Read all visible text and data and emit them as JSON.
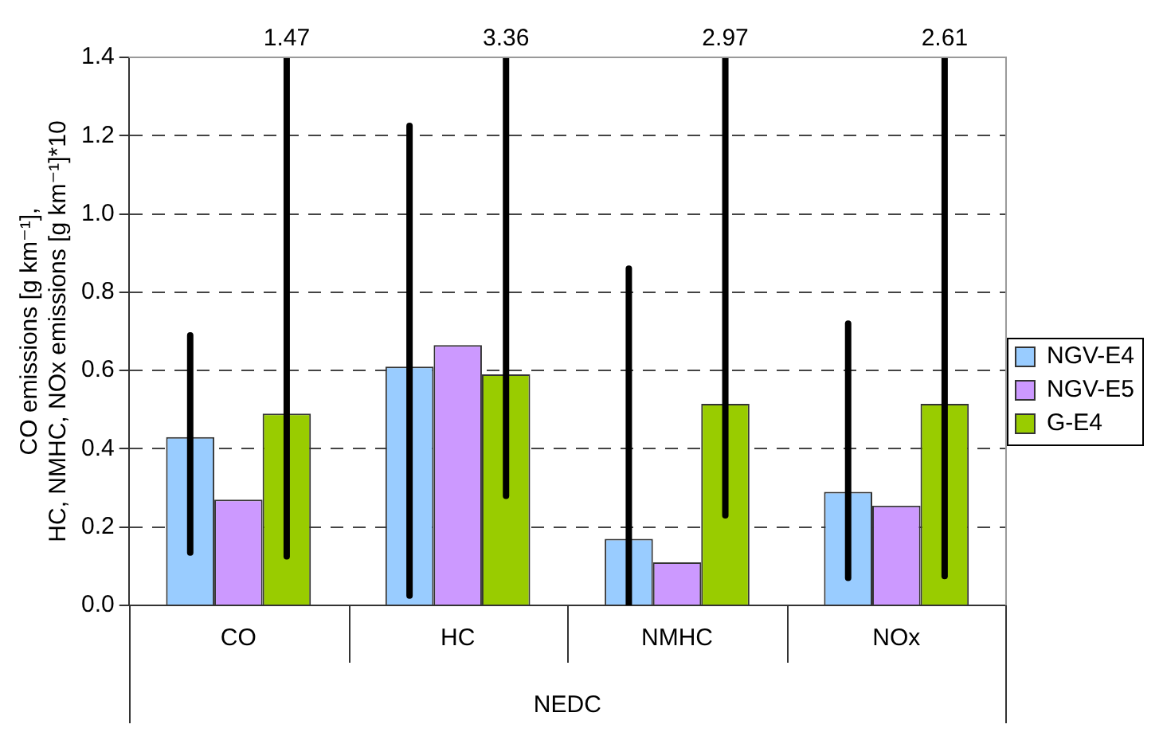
{
  "chart_data": {
    "type": "bar",
    "xlabel": "NEDC",
    "ylabel": "CO emissions [g km⁻¹],\nHC, NMHC, NOx emissions [g km⁻¹]*10",
    "categories": [
      "CO",
      "HC",
      "NMHC",
      "NOx"
    ],
    "series": [
      {
        "name": "NGV-E4",
        "color": "#99ccff",
        "values": [
          0.43,
          0.61,
          0.17,
          0.29
        ],
        "errors": [
          [
            0.135,
            0.69
          ],
          [
            0.025,
            1.225
          ],
          [
            0.0,
            0.86
          ],
          [
            0.07,
            0.72
          ]
        ]
      },
      {
        "name": "NGV-E5",
        "color": "#cc99ff",
        "values": [
          0.27,
          0.665,
          0.11,
          0.255
        ]
      },
      {
        "name": "G-E4",
        "color": "#99cc00",
        "values": [
          0.49,
          0.59,
          0.515,
          0.515
        ],
        "errors": [
          [
            0.125,
            1.47
          ],
          [
            0.28,
            3.36
          ],
          [
            0.23,
            2.97
          ],
          [
            0.075,
            2.61
          ]
        ]
      }
    ],
    "ylim": [
      0,
      1.4
    ],
    "yticks": [
      {
        "value": 0,
        "label": "0.0"
      },
      {
        "value": 0.2,
        "label": "0.2"
      },
      {
        "value": 0.4,
        "label": "0.4"
      },
      {
        "value": 0.6,
        "label": "0.6"
      },
      {
        "value": 0.8,
        "label": "0.8"
      },
      {
        "value": 1,
        "label": "1.0"
      },
      {
        "value": 1.2,
        "label": "1.2"
      },
      {
        "value": 1.4,
        "label": "1.4"
      }
    ],
    "annotations": [
      "1.47",
      "3.36",
      "2.97",
      "2.61"
    ],
    "grid": "y",
    "legend": "right"
  }
}
